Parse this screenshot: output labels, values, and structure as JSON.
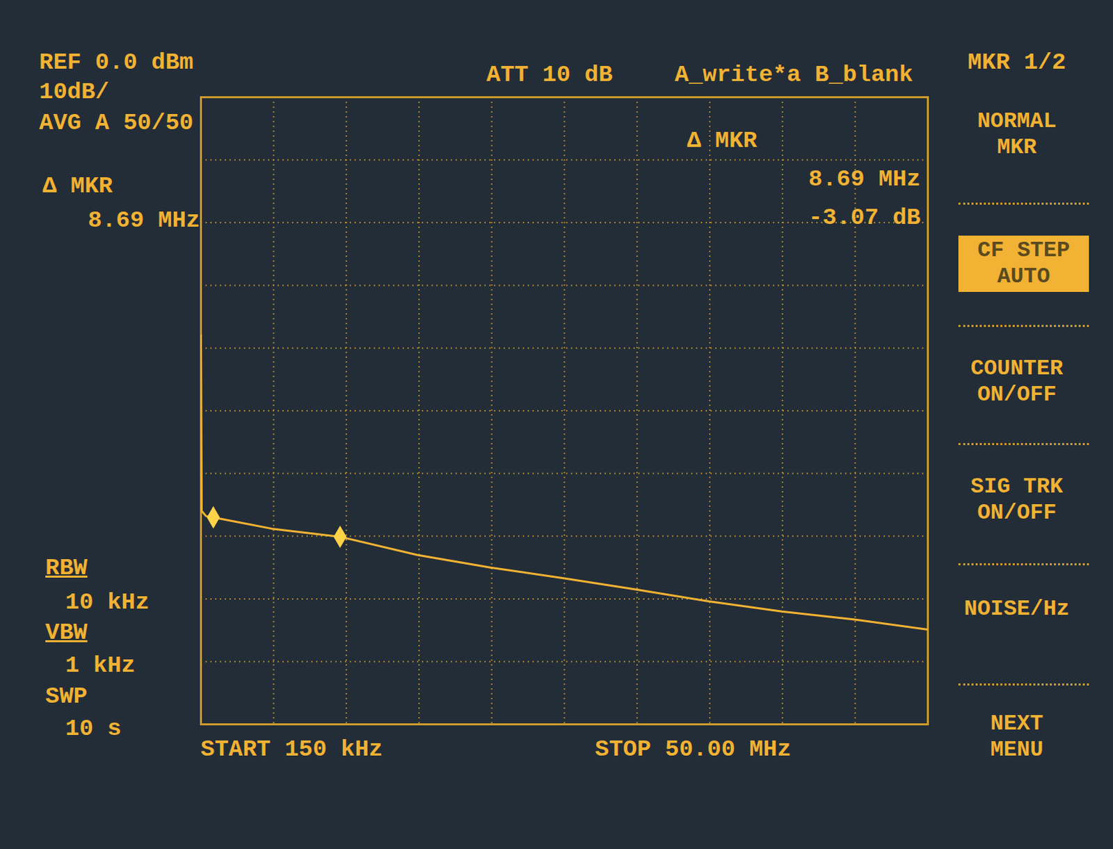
{
  "chart_data": {
    "type": "line",
    "color": "#f2b233",
    "grid": true,
    "tick_labels": false,
    "xlim": [
      0.15,
      50
    ],
    "xticks": [
      0.15,
      5.135,
      10.12,
      15.105,
      20.09,
      25.075,
      30.06,
      35.045,
      40.03,
      45.015,
      50
    ],
    "ylim": [
      -100,
      0
    ],
    "yticks": [
      -100,
      -90,
      -80,
      -70,
      -60,
      -50,
      -40,
      -30,
      -20,
      -10,
      0
    ],
    "x": [
      0.15,
      0.2,
      0.5,
      1.0,
      5,
      9.69,
      15,
      20,
      25,
      30,
      35,
      40,
      45,
      50
    ],
    "values": [
      -38,
      -66,
      -66.8,
      -67,
      -68.8,
      -70.1,
      -73,
      -75,
      -76.7,
      -78.5,
      -80.4,
      -82,
      -83.3,
      -84.9
    ],
    "markers": {
      "x": [
        1.0,
        9.69
      ],
      "y": [
        -67.0,
        -70.1
      ]
    },
    "annotations": {
      "header_left": [
        "REF 0.0 dBm",
        "10dB/",
        "AVG A 50/50"
      ],
      "header_top": [
        "ATT 10 dB",
        "A_write*a B_blank"
      ],
      "readout_left": [
        "Δ MKR",
        "8.69 MHz"
      ],
      "readout_right": [
        "Δ MKR",
        "8.69 MHz",
        "-3.07 dB"
      ],
      "menu_title": "MKR 1/2",
      "softkeys": [
        [
          "NORMAL",
          "MKR"
        ],
        [
          "CF STEP",
          "AUTO"
        ],
        [
          "COUNTER",
          "ON/OFF"
        ],
        [
          "SIG TRK",
          "ON/OFF"
        ],
        [
          "NOISE/Hz"
        ],
        [
          "NEXT",
          "MENU"
        ]
      ],
      "bandwidth": [
        "RBW",
        "10 kHz",
        "VBW",
        "1 kHz",
        "SWP",
        "10 s"
      ],
      "start": "START 150 kHz",
      "stop": "STOP 50.00 MHz"
    }
  }
}
